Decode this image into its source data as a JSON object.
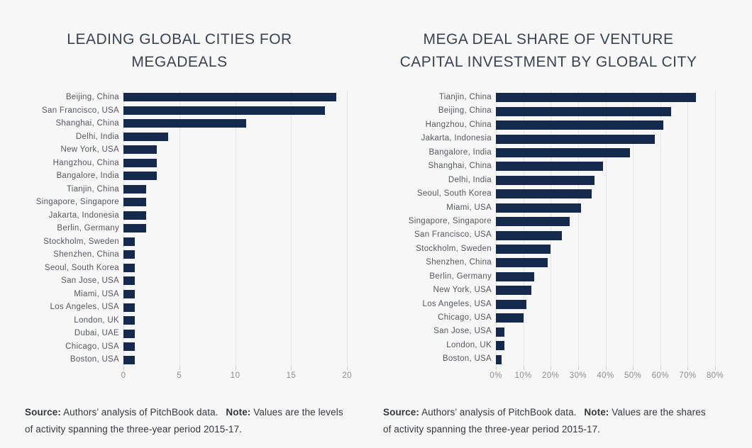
{
  "page": {
    "background_color": "#f7f7f8"
  },
  "colors": {
    "bar": "#15294d",
    "grid": "#e4e5e7",
    "tick": "#c8cacd",
    "title_text": "#39434f",
    "label_text": "#54585d",
    "axis_text": "#898d92",
    "note_text": "#33373c"
  },
  "chart_data": [
    {
      "type": "bar",
      "orientation": "horizontal",
      "title": "LEADING GLOBAL CITIES FOR MEGADEALS",
      "title_lines": [
        "LEADING GLOBAL CITIES FOR",
        "MEGADEALS"
      ],
      "categories": [
        "Beijing, China",
        "San Francisco, USA",
        "Shanghai, China",
        "Delhi, India",
        "New York, USA",
        "Hangzhou, China",
        "Bangalore, India",
        "Tianjin, China",
        "Singapore, Singapore",
        "Jakarta, Indonesia",
        "Berlin, Germany",
        "Stockholm, Sweden",
        "Shenzhen, China",
        "Seoul, South Korea",
        "San Jose, USA",
        "Miami, USA",
        "Los Angeles, USA",
        "London, UK",
        "Dubai, UAE",
        "Chicago, USA",
        "Boston, USA"
      ],
      "values": [
        19,
        18,
        11,
        4,
        3,
        3,
        3,
        2,
        2,
        2,
        2,
        1,
        1,
        1,
        1,
        1,
        1,
        1,
        1,
        1,
        1
      ],
      "xlabel": "",
      "ylabel": "",
      "xticks": [
        0,
        5,
        10,
        15,
        20
      ],
      "xtick_labels": [
        "0",
        "5",
        "10",
        "15",
        "20"
      ],
      "xlim": [
        0,
        21
      ],
      "grid": true,
      "legend": false,
      "value_unit": "number of megadeals"
    },
    {
      "type": "bar",
      "orientation": "horizontal",
      "title": "MEGA DEAL SHARE OF VENTURE CAPITAL INVESTMENT BY GLOBAL CITY",
      "title_lines": [
        "MEGA DEAL SHARE OF VENTURE",
        "CAPITAL INVESTMENT BY GLOBAL CITY"
      ],
      "categories": [
        "Tianjin, China",
        "Beijing, China",
        "Hangzhou, China",
        "Jakarta, Indonesia",
        "Bangalore, India",
        "Shanghai, China",
        "Delhi, India",
        "Seoul, South Korea",
        "Miami, USA",
        "Singapore, Singapore",
        "San Francisco, USA",
        "Stockholm, Sweden",
        "Shenzhen, China",
        "Berlin, Germany",
        "New York, USA",
        "Los Angeles, USA",
        "Chicago, USA",
        "San Jose, USA",
        "London, UK",
        "Boston, USA"
      ],
      "values": [
        73,
        64,
        61,
        58,
        49,
        39,
        36,
        35,
        31,
        27,
        24,
        20,
        19,
        14,
        13,
        11,
        10,
        3,
        3,
        2
      ],
      "xlabel": "",
      "ylabel": "",
      "xticks": [
        0,
        10,
        20,
        30,
        40,
        50,
        60,
        70,
        80
      ],
      "xtick_labels": [
        "0%",
        "10%",
        "20%",
        "30%",
        "40%",
        "50%",
        "60%",
        "70%",
        "80%"
      ],
      "xlim": [
        0,
        85.7
      ],
      "grid": true,
      "legend": false,
      "value_unit": "percent share"
    }
  ],
  "footnotes": [
    {
      "source_label": "Source:",
      "source_text": "Authors’ analysis of PitchBook data.",
      "note_label": "Note:",
      "note_text": "Values are the levels of activity spanning the three-year period 2015-17."
    },
    {
      "source_label": "Source:",
      "source_text": "Authors’ analysis of PitchBook data.",
      "note_label": "Note:",
      "note_text": "Values are the shares of activity spanning the three-year period 2015-17."
    }
  ]
}
